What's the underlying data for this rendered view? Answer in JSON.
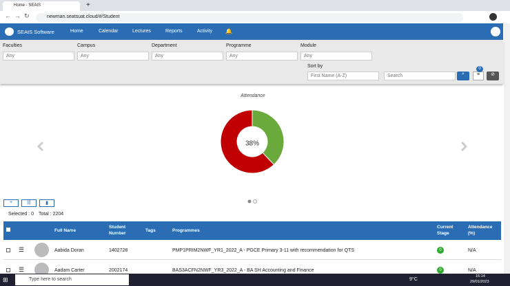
{
  "browser": {
    "tab_title": "Home - SEAtS",
    "url": "newman.seatsuat.cloud/#/Student"
  },
  "nav": {
    "brand": "SEAtS Software",
    "items": [
      "Home",
      "Calendar",
      "Lectures",
      "Reports",
      "Activity"
    ]
  },
  "filters": [
    {
      "label": "Faculties",
      "value": "Any"
    },
    {
      "label": "Campus",
      "value": "Any"
    },
    {
      "label": "Department",
      "value": "Any"
    },
    {
      "label": "Programme",
      "value": "Any"
    },
    {
      "label": "Module",
      "value": "Any"
    }
  ],
  "sort": {
    "label": "Sort by",
    "value": "First Name (A-Z)",
    "search_placeholder": "Search",
    "filter_count": "0"
  },
  "chart_data": {
    "type": "pie",
    "title": "Attendance",
    "values": [
      38,
      62
    ],
    "value_labels": [
      "38%",
      null
    ],
    "colors": [
      "#6aaa3c",
      "#c00000"
    ]
  },
  "selection": {
    "selected": "Selected : 0",
    "total": "Total : 2204"
  },
  "table": {
    "columns": [
      "Full Name",
      "Student Number",
      "Tags",
      "Programmes",
      "Current Stage",
      "Attendance (%)"
    ],
    "rows": [
      {
        "name": "Aabida Doran",
        "student_number": "1402728",
        "programme": "PMP1PRIM2NWF_YR1_2022_A - PGCE Primary 3-11 with recommendation for QTS",
        "stage": "0",
        "attendance": "N/A"
      },
      {
        "name": "Aadam Carter",
        "student_number": "2002174",
        "programme": "BAS3ACFN2NWF_YR3_2022_A - BA SH Accounting and Finance",
        "stage": "0",
        "attendance": "N/A"
      }
    ]
  },
  "taskbar": {
    "search": "Type here to search",
    "weather": "9°C",
    "time": "16:14",
    "date": "29/01/2023"
  }
}
